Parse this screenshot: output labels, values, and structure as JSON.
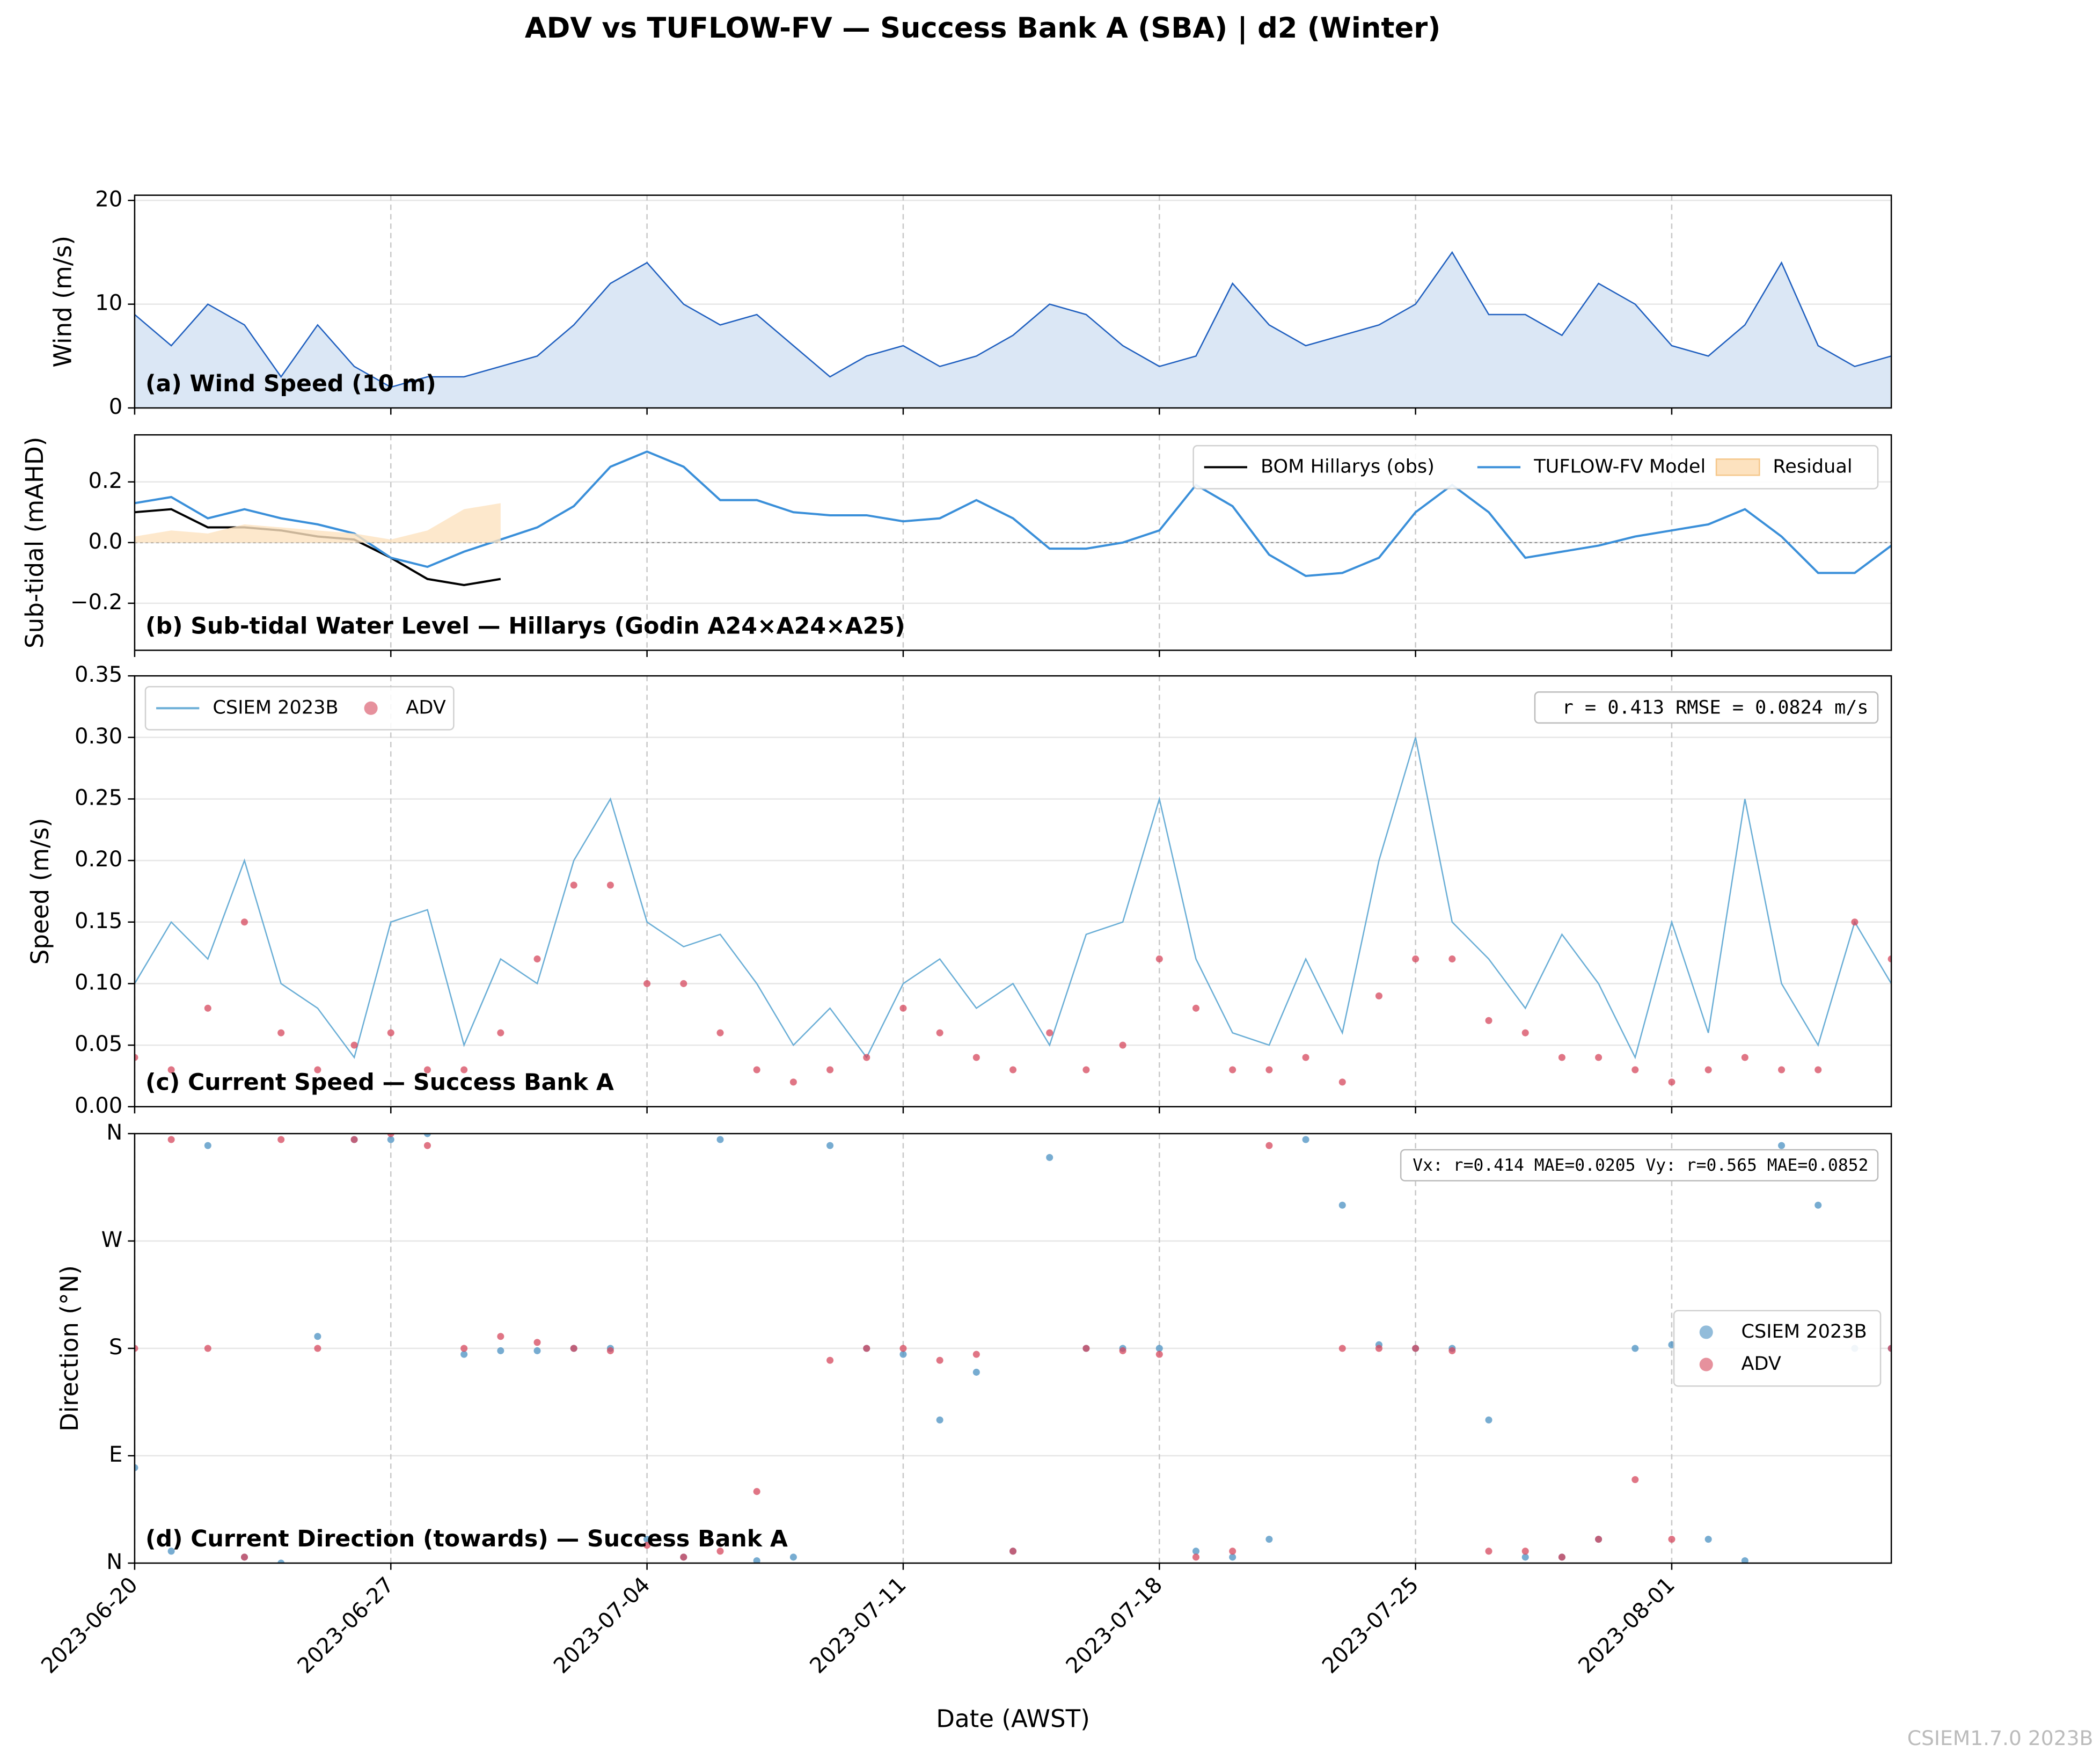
{
  "title": "ADV vs TUFLOW-FV — Success Bank A (SBA) | d2 (Winter)",
  "footer": "CSIEM1.7.0 2023B",
  "chart_data": [
    {
      "type": "area",
      "title": "(a) Wind Speed (10 m)",
      "ylabel": "Wind (m/s)",
      "xlim": [
        "2023-06-20",
        "2023-08-07"
      ],
      "xticks": [
        "2023-06-20",
        "2023-06-27",
        "2023-07-04",
        "2023-07-11",
        "2023-07-18",
        "2023-07-25",
        "2023-08-01"
      ],
      "ylim": [
        0,
        20.5
      ],
      "yticks": [
        0,
        10,
        20
      ],
      "grid": true,
      "x": [
        "2023-06-20",
        "2023-06-21",
        "2023-06-22",
        "2023-06-23",
        "2023-06-24",
        "2023-06-25",
        "2023-06-26",
        "2023-06-27",
        "2023-06-28",
        "2023-06-29",
        "2023-06-30",
        "2023-07-01",
        "2023-07-02",
        "2023-07-03",
        "2023-07-04",
        "2023-07-05",
        "2023-07-06",
        "2023-07-07",
        "2023-07-08",
        "2023-07-09",
        "2023-07-10",
        "2023-07-11",
        "2023-07-12",
        "2023-07-13",
        "2023-07-14",
        "2023-07-15",
        "2023-07-16",
        "2023-07-17",
        "2023-07-18",
        "2023-07-19",
        "2023-07-20",
        "2023-07-21",
        "2023-07-22",
        "2023-07-23",
        "2023-07-24",
        "2023-07-25",
        "2023-07-26",
        "2023-07-27",
        "2023-07-28",
        "2023-07-29",
        "2023-07-30",
        "2023-07-31",
        "2023-08-01",
        "2023-08-02",
        "2023-08-03",
        "2023-08-04",
        "2023-08-05",
        "2023-08-06",
        "2023-08-07"
      ],
      "series": [
        {
          "color": "#1f5fbf",
          "fill": "#dbe7f5",
          "values": [
            9,
            6,
            10,
            8,
            3,
            8,
            4,
            2,
            3,
            3,
            4,
            5,
            8,
            12,
            14,
            10,
            8,
            9,
            6,
            3,
            5,
            6,
            4,
            5,
            7,
            10,
            9,
            6,
            4,
            5,
            12,
            8,
            6,
            7,
            8,
            10,
            15,
            9,
            9,
            7,
            12,
            10,
            6,
            5,
            8,
            14,
            6,
            4,
            5
          ]
        }
      ]
    },
    {
      "type": "line",
      "title": "(b) Sub-tidal Water Level — Hillarys (Godin A24×A24×A25)",
      "ylabel": "Sub-tidal (mAHD)",
      "xlim": [
        "2023-06-20",
        "2023-08-07"
      ],
      "xticks": [
        "2023-06-20",
        "2023-06-27",
        "2023-07-04",
        "2023-07-11",
        "2023-07-18",
        "2023-07-25",
        "2023-08-01"
      ],
      "ylim": [
        -0.355,
        0.355
      ],
      "yticks": [
        {
          "value": -0.2,
          "label": "−0.2"
        },
        {
          "value": 0,
          "label": "0.0"
        },
        0.2
      ],
      "grid": true,
      "hline": 0,
      "legend": "upper right",
      "legend_ncol": 3,
      "x": [
        "2023-06-20",
        "2023-06-21",
        "2023-06-22",
        "2023-06-23",
        "2023-06-24",
        "2023-06-25",
        "2023-06-26",
        "2023-06-27",
        "2023-06-28",
        "2023-06-29",
        "2023-06-30",
        "2023-07-01",
        "2023-07-02",
        "2023-07-03",
        "2023-07-04",
        "2023-07-05",
        "2023-07-06",
        "2023-07-07",
        "2023-07-08",
        "2023-07-09",
        "2023-07-10",
        "2023-07-11",
        "2023-07-12",
        "2023-07-13",
        "2023-07-14",
        "2023-07-15",
        "2023-07-16",
        "2023-07-17",
        "2023-07-18",
        "2023-07-19",
        "2023-07-20",
        "2023-07-21",
        "2023-07-22",
        "2023-07-23",
        "2023-07-24",
        "2023-07-25",
        "2023-07-26",
        "2023-07-27",
        "2023-07-28",
        "2023-07-29",
        "2023-07-30",
        "2023-07-31",
        "2023-08-01",
        "2023-08-02",
        "2023-08-03",
        "2023-08-04",
        "2023-08-05",
        "2023-08-06",
        "2023-08-07"
      ],
      "series": [
        {
          "name": "BOM Hillarys (obs)",
          "type": "line",
          "color": "#000000",
          "values": [
            0.1,
            0.11,
            0.05,
            0.05,
            0.04,
            0.02,
            0.01,
            -0.05,
            -0.12,
            -0.14,
            -0.12,
            null,
            null,
            null,
            null,
            null,
            null,
            null,
            null,
            null,
            null,
            null,
            null,
            null,
            null,
            null,
            null,
            null,
            null,
            null,
            null,
            null,
            null,
            null,
            null,
            null,
            null,
            null,
            null,
            null,
            null,
            null,
            null,
            null,
            null,
            null,
            null,
            null,
            null
          ]
        },
        {
          "name": "TUFLOW-FV Model",
          "type": "line",
          "color": "#3a8fd9",
          "values": [
            0.13,
            0.15,
            0.08,
            0.11,
            0.08,
            0.06,
            0.03,
            -0.05,
            -0.08,
            -0.03,
            0.01,
            0.05,
            0.12,
            0.25,
            0.3,
            0.25,
            0.14,
            0.14,
            0.1,
            0.09,
            0.09,
            0.07,
            0.08,
            0.14,
            0.08,
            -0.02,
            -0.02,
            0.0,
            0.04,
            0.19,
            0.12,
            -0.04,
            -0.11,
            -0.1,
            -0.05,
            0.1,
            0.19,
            0.1,
            -0.05,
            -0.03,
            -0.01,
            0.02,
            0.04,
            0.06,
            0.11,
            0.02,
            -0.1,
            -0.1,
            -0.01
          ]
        },
        {
          "name": "Residual",
          "type": "area",
          "color": "#fde2bf",
          "values": [
            0.02,
            0.04,
            0.03,
            0.06,
            0.05,
            0.04,
            0.03,
            0.01,
            0.04,
            0.11,
            0.13,
            null,
            null,
            null,
            null,
            null,
            null,
            null,
            null,
            null,
            null,
            null,
            null,
            null,
            null,
            null,
            null,
            null,
            null,
            null,
            null,
            null,
            null,
            null,
            null,
            null,
            null,
            null,
            null,
            null,
            null,
            null,
            null,
            null,
            null,
            null,
            null,
            null,
            null
          ]
        }
      ]
    },
    {
      "type": "line",
      "title": "(c) Current Speed — Success Bank A",
      "ylabel": "Speed (m/s)",
      "annotation": "r = 0.413  RMSE = 0.0824 m/s",
      "xlim": [
        "2023-06-20",
        "2023-08-07"
      ],
      "xticks": [
        "2023-06-20",
        "2023-06-27",
        "2023-07-04",
        "2023-07-11",
        "2023-07-18",
        "2023-07-25",
        "2023-08-01"
      ],
      "ylim": [
        0,
        0.35
      ],
      "yticks": [
        {
          "value": 0,
          "label": "0.00"
        },
        {
          "value": 0.05,
          "label": "0.05"
        },
        {
          "value": 0.1,
          "label": "0.10"
        },
        {
          "value": 0.15,
          "label": "0.15"
        },
        {
          "value": 0.2,
          "label": "0.20"
        },
        {
          "value": 0.25,
          "label": "0.25"
        },
        {
          "value": 0.3,
          "label": "0.30"
        },
        {
          "value": 0.35,
          "label": "0.35"
        }
      ],
      "grid": true,
      "legend": "upper left",
      "legend_ncol": 2,
      "x": [
        "2023-06-20",
        "2023-06-21",
        "2023-06-22",
        "2023-06-23",
        "2023-06-24",
        "2023-06-25",
        "2023-06-26",
        "2023-06-27",
        "2023-06-28",
        "2023-06-29",
        "2023-06-30",
        "2023-07-01",
        "2023-07-02",
        "2023-07-03",
        "2023-07-04",
        "2023-07-05",
        "2023-07-06",
        "2023-07-07",
        "2023-07-08",
        "2023-07-09",
        "2023-07-10",
        "2023-07-11",
        "2023-07-12",
        "2023-07-13",
        "2023-07-14",
        "2023-07-15",
        "2023-07-16",
        "2023-07-17",
        "2023-07-18",
        "2023-07-19",
        "2023-07-20",
        "2023-07-21",
        "2023-07-22",
        "2023-07-23",
        "2023-07-24",
        "2023-07-25",
        "2023-07-26",
        "2023-07-27",
        "2023-07-28",
        "2023-07-29",
        "2023-07-30",
        "2023-07-31",
        "2023-08-01",
        "2023-08-02",
        "2023-08-03",
        "2023-08-04",
        "2023-08-05",
        "2023-08-06",
        "2023-08-07"
      ],
      "series": [
        {
          "name": "CSIEM 2023B",
          "type": "line",
          "color": "#6aaed6",
          "values": [
            0.1,
            0.15,
            0.12,
            0.2,
            0.1,
            0.08,
            0.04,
            0.15,
            0.16,
            0.05,
            0.12,
            0.1,
            0.2,
            0.25,
            0.15,
            0.13,
            0.14,
            0.1,
            0.05,
            0.08,
            0.04,
            0.1,
            0.12,
            0.08,
            0.1,
            0.05,
            0.14,
            0.15,
            0.25,
            0.12,
            0.06,
            0.05,
            0.12,
            0.06,
            0.2,
            0.3,
            0.15,
            0.12,
            0.08,
            0.14,
            0.1,
            0.04,
            0.15,
            0.06,
            0.25,
            0.1,
            0.05,
            0.15,
            0.1
          ]
        },
        {
          "name": "ADV",
          "type": "scatter",
          "color": "#d6475c",
          "values": [
            0.04,
            0.03,
            0.08,
            0.15,
            0.06,
            0.03,
            0.05,
            0.06,
            0.03,
            0.03,
            0.06,
            0.12,
            0.18,
            0.18,
            0.1,
            0.1,
            0.06,
            0.03,
            0.02,
            0.03,
            0.04,
            0.08,
            0.06,
            0.04,
            0.03,
            0.06,
            0.03,
            0.05,
            0.12,
            0.08,
            0.03,
            0.03,
            0.04,
            0.02,
            0.09,
            0.12,
            0.12,
            0.07,
            0.06,
            0.04,
            0.04,
            0.03,
            0.02,
            0.03,
            0.04,
            0.03,
            0.03,
            0.15,
            0.12
          ]
        }
      ]
    },
    {
      "type": "scatter",
      "title": "(d) Current Direction (towards) — Success Bank A",
      "ylabel": "Direction (°N)",
      "xlabel": "Date (AWST)",
      "annotation": "Vx: r=0.414 MAE=0.0205  Vy: r=0.565 MAE=0.0852",
      "xlim": [
        "2023-06-20",
        "2023-08-07"
      ],
      "xticks": [
        "2023-06-20",
        "2023-06-27",
        "2023-07-04",
        "2023-07-11",
        "2023-07-18",
        "2023-07-25",
        "2023-08-01"
      ],
      "ylim": [
        0,
        360
      ],
      "yticks": [
        {
          "value": 0,
          "label": "N"
        },
        {
          "value": 90,
          "label": "E"
        },
        {
          "value": 180,
          "label": "S"
        },
        {
          "value": 270,
          "label": "W"
        },
        {
          "value": 360,
          "label": "N"
        }
      ],
      "grid": true,
      "legend": "center right",
      "legend_ncol": 1,
      "x": [
        "2023-06-20",
        "2023-06-21",
        "2023-06-22",
        "2023-06-23",
        "2023-06-24",
        "2023-06-25",
        "2023-06-26",
        "2023-06-27",
        "2023-06-28",
        "2023-06-29",
        "2023-06-30",
        "2023-07-01",
        "2023-07-02",
        "2023-07-03",
        "2023-07-04",
        "2023-07-05",
        "2023-07-06",
        "2023-07-07",
        "2023-07-08",
        "2023-07-09",
        "2023-07-10",
        "2023-07-11",
        "2023-07-12",
        "2023-07-13",
        "2023-07-14",
        "2023-07-15",
        "2023-07-16",
        "2023-07-17",
        "2023-07-18",
        "2023-07-19",
        "2023-07-20",
        "2023-07-21",
        "2023-07-22",
        "2023-07-23",
        "2023-07-24",
        "2023-07-25",
        "2023-07-26",
        "2023-07-27",
        "2023-07-28",
        "2023-07-29",
        "2023-07-30",
        "2023-07-31",
        "2023-08-01",
        "2023-08-02",
        "2023-08-03",
        "2023-08-04",
        "2023-08-05",
        "2023-08-06",
        "2023-08-07"
      ],
      "series": [
        {
          "name": "CSIEM 2023B",
          "color": "#4a90c2",
          "values": [
            80,
            10,
            350,
            5,
            0,
            190,
            355,
            355,
            360,
            175,
            178,
            178,
            180,
            180,
            20,
            5,
            355,
            2,
            5,
            350,
            180,
            175,
            120,
            160,
            10,
            340,
            180,
            180,
            180,
            10,
            5,
            20,
            355,
            300,
            183,
            180,
            180,
            120,
            5,
            5,
            20,
            180,
            183,
            20,
            2,
            350,
            300,
            180,
            180
          ]
        },
        {
          "name": "ADV",
          "color": "#d6475c",
          "values": [
            180,
            355,
            180,
            5,
            355,
            180,
            355,
            360,
            350,
            180,
            190,
            185,
            180,
            178,
            15,
            5,
            10,
            60,
            null,
            170,
            180,
            180,
            170,
            175,
            10,
            null,
            180,
            178,
            175,
            5,
            10,
            350,
            null,
            180,
            180,
            180,
            178,
            10,
            10,
            5,
            20,
            70,
            20,
            null,
            null,
            null,
            null,
            190,
            180
          ]
        }
      ]
    }
  ]
}
